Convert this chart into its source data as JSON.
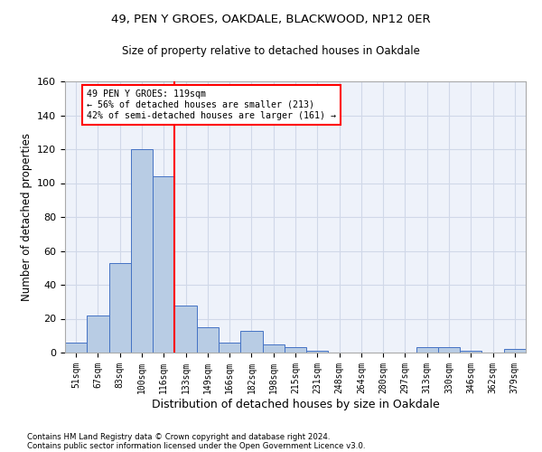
{
  "title1": "49, PEN Y GROES, OAKDALE, BLACKWOOD, NP12 0ER",
  "title2": "Size of property relative to detached houses in Oakdale",
  "xlabel": "Distribution of detached houses by size in Oakdale",
  "ylabel": "Number of detached properties",
  "footnote1": "Contains HM Land Registry data © Crown copyright and database right 2024.",
  "footnote2": "Contains public sector information licensed under the Open Government Licence v3.0.",
  "categories": [
    "51sqm",
    "67sqm",
    "83sqm",
    "100sqm",
    "116sqm",
    "133sqm",
    "149sqm",
    "166sqm",
    "182sqm",
    "198sqm",
    "215sqm",
    "231sqm",
    "248sqm",
    "264sqm",
    "280sqm",
    "297sqm",
    "313sqm",
    "330sqm",
    "346sqm",
    "362sqm",
    "379sqm"
  ],
  "values": [
    6,
    22,
    53,
    120,
    104,
    28,
    15,
    6,
    13,
    5,
    3,
    1,
    0,
    0,
    0,
    0,
    3,
    3,
    1,
    0,
    2
  ],
  "bar_color": "#b8cce4",
  "bar_edge_color": "#4472c4",
  "property_line_bin": 4,
  "annotation_text1": "49 PEN Y GROES: 119sqm",
  "annotation_text2": "← 56% of detached houses are smaller (213)",
  "annotation_text3": "42% of semi-detached houses are larger (161) →",
  "annotation_box_color": "white",
  "annotation_box_edge_color": "red",
  "vline_color": "red",
  "ylim": [
    0,
    160
  ],
  "yticks": [
    0,
    20,
    40,
    60,
    80,
    100,
    120,
    140,
    160
  ],
  "grid_color": "#d0d8e8",
  "background_color": "#eef2fa"
}
